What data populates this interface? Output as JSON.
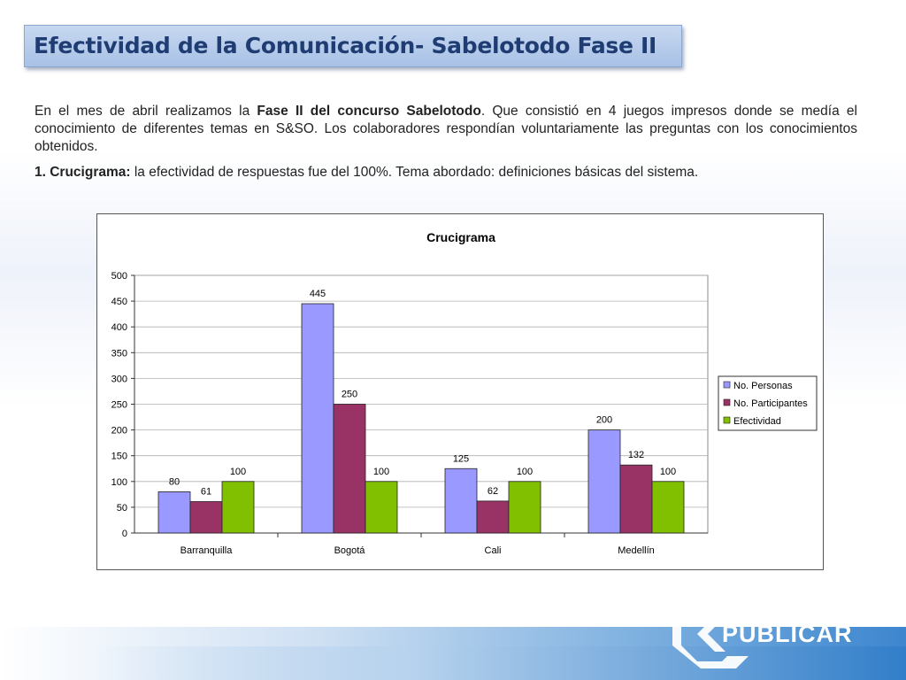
{
  "slide": {
    "title": "Efectividad de la Comunicación- Sabelotodo Fase II",
    "paragraph1": {
      "part1": "En el mes de abril realizamos la ",
      "bold1": "Fase II del concurso Sabelotodo",
      "part2": ". Que consistió en 4 juegos impresos  donde se medía el conocimiento de diferentes temas en S&SO. Los colaboradores respondían voluntariamente las preguntas con los conocimientos obtenidos."
    },
    "paragraph2": {
      "bold1": "1. Crucigrama:",
      "part1": " la efectividad de respuestas fue del 100%. Tema abordado: definiciones básicas del sistema."
    },
    "logo_text": "PUBLICAR"
  },
  "chart_data": {
    "type": "bar",
    "title": "Crucigrama",
    "categories": [
      "Barranquilla",
      "Bogotá",
      "Cali",
      "Medellín"
    ],
    "series": [
      {
        "name": "No. Personas",
        "values": [
          80,
          445,
          125,
          200
        ],
        "color": "#9999ff"
      },
      {
        "name": "No. Participantes",
        "values": [
          61,
          250,
          62,
          132
        ],
        "color": "#993366"
      },
      {
        "name": "Efectividad",
        "values": [
          100,
          100,
          100,
          100
        ],
        "color": "#80c000"
      }
    ],
    "ylim": [
      0,
      500
    ],
    "yticks": [
      0,
      50,
      100,
      150,
      200,
      250,
      300,
      350,
      400,
      450,
      500
    ],
    "grid": true,
    "legend": "right"
  }
}
